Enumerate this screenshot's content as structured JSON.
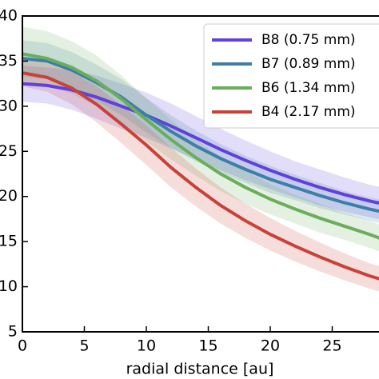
{
  "chart_data": {
    "type": "line",
    "x_label": "radial distance [au]",
    "x": [
      0,
      2,
      4,
      6,
      8,
      10,
      12,
      14,
      16,
      18,
      20,
      22,
      24,
      26,
      28,
      29
    ],
    "series": [
      {
        "name": "B8 (0.75 mm)",
        "color": "#6040e0",
        "values": [
          32.5,
          32.3,
          31.8,
          31,
          30,
          29,
          27.8,
          26.5,
          25.2,
          24,
          22.9,
          21.9,
          21,
          20.2,
          19.5,
          19.2
        ],
        "error": [
          2,
          2,
          2.2,
          2.4,
          2.5,
          2.5,
          2.5,
          2.4,
          2.3,
          2.2,
          2.1,
          2,
          2,
          1.9,
          1.8,
          1.8
        ]
      },
      {
        "name": "B7 (0.89 mm)",
        "color": "#3e7ea9",
        "values": [
          35.3,
          35,
          34,
          32.6,
          31,
          29,
          27.2,
          25.6,
          24.2,
          23,
          21.9,
          21,
          20.1,
          19.3,
          18.6,
          18.3
        ],
        "error": [
          2,
          2,
          2,
          2,
          2,
          1.9,
          1.8,
          1.7,
          1.6,
          1.5,
          1.5,
          1.4,
          1.4,
          1.3,
          1.3,
          1.3
        ]
      },
      {
        "name": "B6 (1.34 mm)",
        "color": "#6aae5a",
        "values": [
          35.8,
          35.3,
          34.3,
          32.8,
          30.8,
          28.5,
          26.3,
          24.3,
          22.5,
          21,
          19.7,
          18.6,
          17.6,
          16.7,
          15.8,
          15.3
        ],
        "error": [
          3,
          3,
          2.9,
          2.8,
          2.6,
          2.4,
          2.2,
          2,
          1.9,
          1.8,
          1.7,
          1.6,
          1.6,
          1.5,
          1.5,
          1.5
        ]
      },
      {
        "name": "B4 (2.17 mm)",
        "color": "#c8423a",
        "values": [
          33.7,
          33.2,
          32,
          30.2,
          28,
          25.7,
          23.2,
          21,
          19,
          17.3,
          15.8,
          14.5,
          13.3,
          12.2,
          11.2,
          10.8
        ],
        "error": [
          1.5,
          1.6,
          1.8,
          2,
          2.1,
          2.2,
          2.2,
          2.1,
          2,
          1.9,
          1.8,
          1.7,
          1.6,
          1.5,
          1.4,
          1.4
        ]
      }
    ],
    "xlim": [
      0,
      29
    ],
    "xticks": [
      0,
      5,
      10,
      15,
      20,
      25
    ],
    "ylim": [
      5,
      40
    ],
    "yticks": [
      5,
      10,
      15,
      20,
      25,
      30,
      35,
      40
    ],
    "legend": "upper right"
  }
}
